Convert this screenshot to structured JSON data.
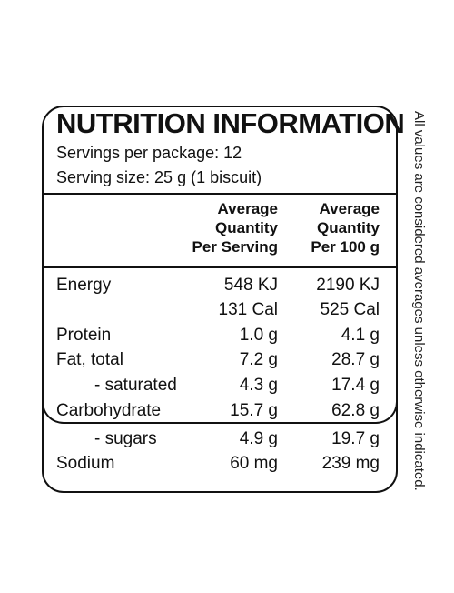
{
  "title": "NUTRITION INFORMATION",
  "servings_per_package": "Servings per package: 12",
  "serving_size": "Serving size: 25 g (1 biscuit)",
  "columns": {
    "per_serving": [
      "Average",
      "Quantity",
      "Per Serving"
    ],
    "per_100g": [
      "Average",
      "Quantity",
      "Per 100 g"
    ]
  },
  "rows": [
    {
      "label": "Energy",
      "per_serving": "548 KJ",
      "per_100g": "2190 KJ"
    },
    {
      "label": "",
      "per_serving": "131 Cal",
      "per_100g": "525 Cal"
    },
    {
      "label": "Protein",
      "per_serving": "1.0 g",
      "per_100g": "4.1 g"
    },
    {
      "label": "Fat, total",
      "per_serving": "7.2 g",
      "per_100g": "28.7 g"
    },
    {
      "label": "- saturated",
      "per_serving": "4.3 g",
      "per_100g": "17.4 g"
    },
    {
      "label": "Carbohydrate",
      "per_serving": "15.7 g",
      "per_100g": "62.8 g"
    },
    {
      "label": "- sugars",
      "per_serving": "4.9 g",
      "per_100g": "19.7 g"
    },
    {
      "label": "Sodium",
      "per_serving": "60 mg",
      "per_100g": "239 mg"
    }
  ],
  "side_note": "All values are considered averages unless otherwise indicated."
}
